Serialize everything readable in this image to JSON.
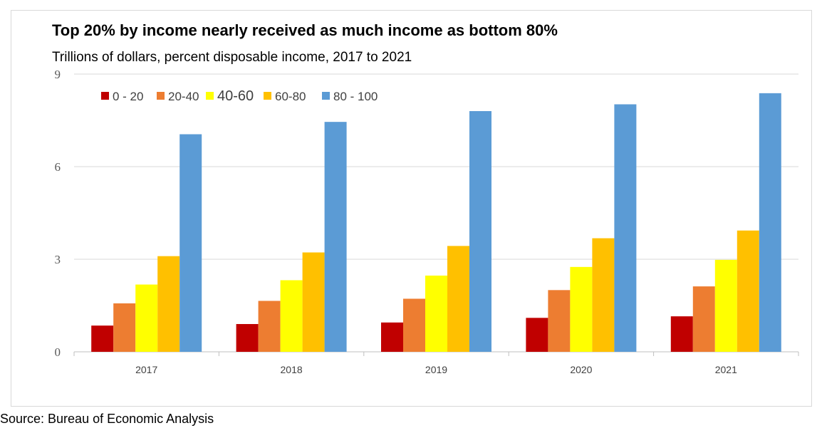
{
  "chart_data": {
    "type": "bar",
    "title": "Top 20% by income nearly received as much income as bottom 80%",
    "subtitle": "Trillions of dollars, percent disposable income, 2017 to 2021",
    "categories": [
      "2017",
      "2018",
      "2019",
      "2020",
      "2021"
    ],
    "ylim": [
      0,
      9
    ],
    "yticks": [
      "0",
      "3",
      "6",
      "9"
    ],
    "grid": true,
    "legend_position": "top-left",
    "series": [
      {
        "name": "0 - 20",
        "color": "#c00000",
        "values": [
          0.85,
          0.9,
          0.95,
          1.1,
          1.15
        ]
      },
      {
        "name": "20-40",
        "color": "#ed7d31",
        "values": [
          1.57,
          1.65,
          1.72,
          2.0,
          2.12
        ]
      },
      {
        "name": "40-60",
        "color": "#ffff00",
        "values": [
          2.18,
          2.32,
          2.47,
          2.75,
          2.98
        ]
      },
      {
        "name": "60-80",
        "color": "#ffc000",
        "values": [
          3.1,
          3.22,
          3.43,
          3.68,
          3.93
        ]
      },
      {
        "name": "80 - 100",
        "color": "#5b9bd5",
        "values": [
          7.05,
          7.45,
          7.8,
          8.02,
          8.38
        ]
      }
    ]
  },
  "source": "Source: Bureau of Economic Analysis"
}
